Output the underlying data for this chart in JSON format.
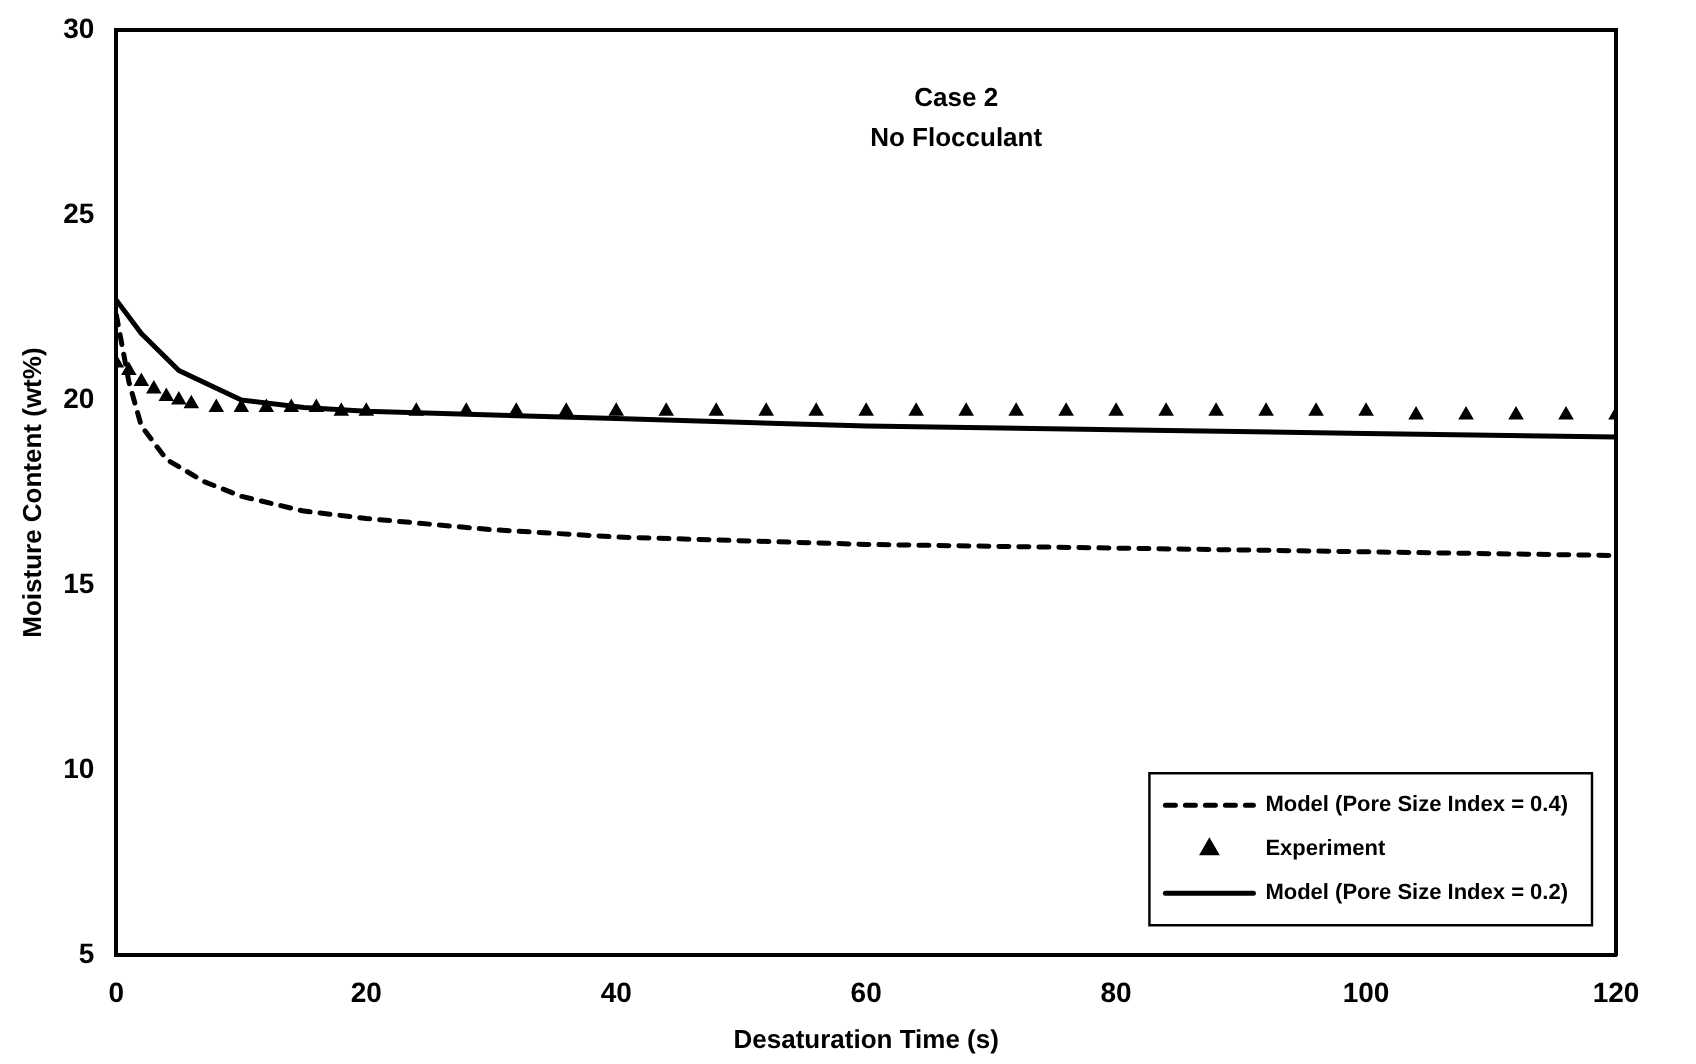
{
  "chart_data": {
    "type": "line",
    "xlabel": "Desaturation Time (s)",
    "ylabel": "Moisture Content (wt%)",
    "annotations": [
      "Case 2",
      "No Flocculant"
    ],
    "xlim": [
      0,
      120
    ],
    "xticks": [
      0,
      20,
      40,
      60,
      80,
      100,
      120
    ],
    "ylim": [
      5,
      30
    ],
    "yticks": [
      5,
      10,
      15,
      20,
      25,
      30
    ],
    "grid": false,
    "legend": "bottom right",
    "series": [
      {
        "name": "Model (Pore Size Index = 0.4)",
        "color": "#000000",
        "line_style": "dashed",
        "marker": "none",
        "x": [
          0,
          1,
          2,
          4,
          7,
          10,
          15,
          20,
          30,
          40,
          60,
          80,
          100,
          120
        ],
        "values": [
          22.3,
          20.5,
          19.3,
          18.4,
          17.8,
          17.4,
          17.0,
          16.8,
          16.5,
          16.3,
          16.1,
          16.0,
          15.9,
          15.8
        ]
      },
      {
        "name": "Experiment",
        "type": "scatter",
        "color": "#000000",
        "marker": "triangle",
        "x": [
          0,
          1,
          2,
          3,
          4,
          5,
          6,
          8,
          10,
          12,
          14,
          16,
          18,
          20,
          24,
          28,
          32,
          36,
          40,
          44,
          48,
          52,
          56,
          60,
          64,
          68,
          72,
          76,
          80,
          84,
          88,
          92,
          96,
          100,
          104,
          108,
          112,
          116,
          120
        ],
        "values": [
          21.0,
          20.8,
          20.5,
          20.3,
          20.1,
          20.0,
          19.9,
          19.8,
          19.8,
          19.8,
          19.8,
          19.8,
          19.7,
          19.7,
          19.7,
          19.7,
          19.7,
          19.7,
          19.7,
          19.7,
          19.7,
          19.7,
          19.7,
          19.7,
          19.7,
          19.7,
          19.7,
          19.7,
          19.7,
          19.7,
          19.7,
          19.7,
          19.7,
          19.7,
          19.6,
          19.6,
          19.6,
          19.6,
          19.6
        ]
      },
      {
        "name": "Model (Pore Size Index = 0.2)",
        "color": "#000000",
        "line_style": "solid",
        "marker": "none",
        "x": [
          0,
          2,
          5,
          10,
          15,
          20,
          40,
          60,
          80,
          100,
          120
        ],
        "values": [
          22.7,
          21.8,
          20.8,
          20.0,
          19.8,
          19.7,
          19.5,
          19.3,
          19.2,
          19.1,
          19.0
        ]
      }
    ]
  }
}
